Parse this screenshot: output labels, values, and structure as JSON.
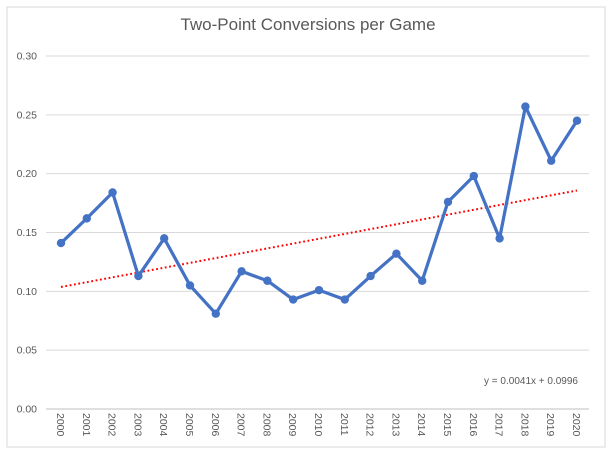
{
  "chart_data": {
    "type": "line",
    "title": "Two-Point Conversions per Game",
    "categories": [
      "2000",
      "2001",
      "2002",
      "2003",
      "2004",
      "2005",
      "2006",
      "2007",
      "2008",
      "2009",
      "2010",
      "2011",
      "2012",
      "2013",
      "2014",
      "2015",
      "2016",
      "2017",
      "2018",
      "2019",
      "2020"
    ],
    "series": [
      {
        "name": "Two-Point Conversions per Game",
        "color": "#4472C4",
        "marker": "circle",
        "values": [
          0.141,
          0.162,
          0.184,
          0.113,
          0.145,
          0.105,
          0.081,
          0.117,
          0.109,
          0.093,
          0.101,
          0.093,
          0.113,
          0.132,
          0.109,
          0.176,
          0.198,
          0.145,
          0.257,
          0.211,
          0.245
        ]
      }
    ],
    "trendline": {
      "label": "y = 0.0041x + 0.0996",
      "slope": 0.0041,
      "intercept": 0.0996,
      "x_is_one_indexed": true,
      "color": "#FF0000",
      "style": "dotted"
    },
    "xlabel": "",
    "ylabel": "",
    "ylim": [
      0,
      0.3
    ],
    "yticks": [
      0,
      0.05,
      0.1,
      0.15,
      0.2,
      0.25,
      0.3
    ],
    "ytick_labels": [
      "0.00",
      "0.05",
      "0.10",
      "0.15",
      "0.20",
      "0.25",
      "0.30"
    ],
    "x_tick_label_rotation_deg": 90,
    "grid": true,
    "legend_position": "none",
    "colors": {
      "series_line": "#4472C4",
      "trendline": "#FF0000",
      "gridline": "#D9D9D9",
      "axis_line": "#BFBFBF",
      "axis_text": "#595959",
      "title_text": "#595959",
      "chart_border": "#D9D9D9",
      "background": "#FFFFFF"
    }
  }
}
